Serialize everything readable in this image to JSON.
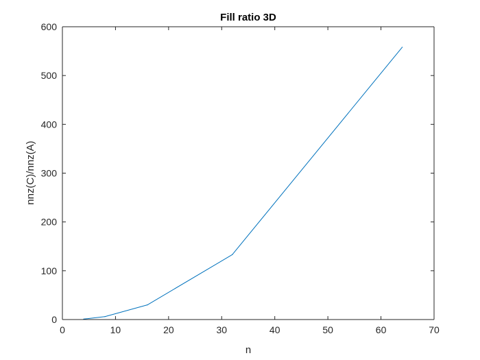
{
  "chart_data": {
    "type": "line",
    "title": "Fill ratio 3D",
    "xlabel": "n",
    "ylabel": "nnz(C)/nnz(A)",
    "xlim": [
      0,
      70
    ],
    "ylim": [
      0,
      600
    ],
    "xticks": [
      0,
      10,
      20,
      30,
      40,
      50,
      60,
      70
    ],
    "yticks": [
      0,
      100,
      200,
      300,
      400,
      500,
      600
    ],
    "grid": false,
    "series": [
      {
        "color": "#0072BD",
        "x": [
          4,
          8,
          16,
          32,
          64
        ],
        "y": [
          1,
          6,
          30,
          133,
          558
        ]
      }
    ]
  }
}
